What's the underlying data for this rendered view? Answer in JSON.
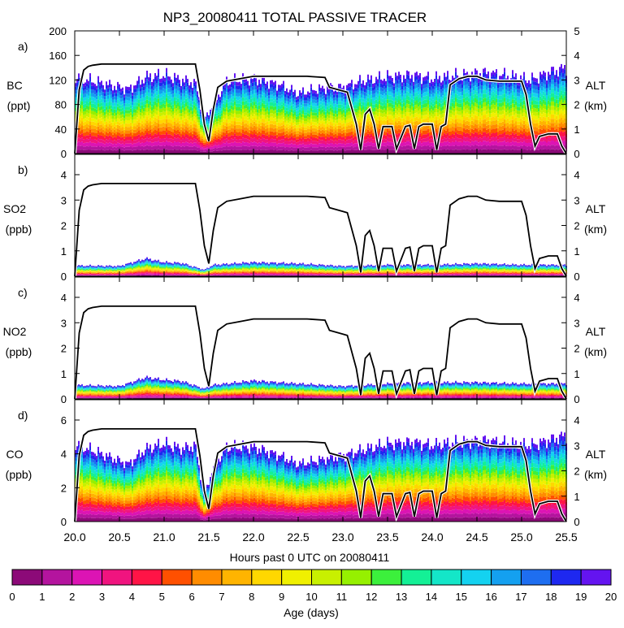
{
  "chart_data": {
    "type": "area",
    "title": "NP3_20080411 TOTAL PASSIVE TRACER",
    "xlabel": "Hours past 0 UTC on 20080411",
    "xlim": [
      20.0,
      25.5
    ],
    "xticks": [
      "20.0",
      "20.5",
      "21.0",
      "21.5",
      "22.0",
      "22.5",
      "23.0",
      "23.5",
      "24.0",
      "24.5",
      "25.0",
      "25.5"
    ],
    "right_axis": {
      "label": "ALT",
      "unit": "(km)"
    },
    "colorbar": {
      "label": "Age (days)",
      "ticks": [
        "0",
        "1",
        "2",
        "3",
        "4",
        "5",
        "6",
        "7",
        "8",
        "9",
        "10",
        "11",
        "12",
        "13",
        "14",
        "15",
        "16",
        "17",
        "18",
        "19",
        "20"
      ],
      "colors": [
        "#8c0a78",
        "#b4149e",
        "#dc14b4",
        "#f0147f",
        "#ff1446",
        "#ff5000",
        "#ff8c00",
        "#ffb400",
        "#ffd700",
        "#f0f000",
        "#c8f000",
        "#96f000",
        "#3cf03c",
        "#14f096",
        "#14e6c8",
        "#14d2f0",
        "#14a0f0",
        "#1e6ef0",
        "#1e28f0",
        "#6414f0"
      ]
    },
    "altitude_km": {
      "x": [
        20.0,
        20.05,
        20.1,
        20.15,
        20.2,
        20.3,
        21.0,
        21.35,
        21.4,
        21.45,
        21.5,
        21.55,
        21.6,
        21.7,
        21.85,
        22.0,
        22.6,
        22.8,
        22.85,
        23.0,
        23.05,
        23.15,
        23.2,
        23.25,
        23.3,
        23.35,
        23.4,
        23.45,
        23.55,
        23.6,
        23.7,
        23.75,
        23.8,
        23.85,
        23.9,
        23.95,
        24.0,
        24.05,
        24.1,
        24.15,
        24.2,
        24.3,
        24.4,
        24.5,
        24.6,
        24.75,
        24.8,
        25.0,
        25.05,
        25.1,
        25.15,
        25.2,
        25.3,
        25.35,
        25.4,
        25.45,
        25.5
      ],
      "y": [
        0.0,
        2.6,
        3.4,
        3.55,
        3.6,
        3.65,
        3.65,
        3.65,
        2.6,
        1.2,
        0.5,
        1.8,
        2.7,
        2.95,
        3.05,
        3.15,
        3.15,
        3.1,
        2.7,
        2.55,
        2.5,
        1.2,
        0.15,
        1.6,
        1.8,
        1.2,
        0.2,
        1.1,
        1.1,
        0.2,
        1.1,
        1.15,
        0.2,
        1.1,
        1.2,
        1.2,
        1.2,
        0.15,
        1.1,
        1.2,
        2.8,
        3.05,
        3.15,
        3.15,
        3.0,
        2.95,
        2.95,
        2.95,
        2.4,
        1.2,
        0.3,
        0.7,
        0.8,
        0.8,
        0.8,
        0.3,
        0.0
      ]
    },
    "panels": [
      {
        "letter": "a)",
        "species": "BC",
        "unit": "(ppt)",
        "ylim": [
          0,
          200
        ],
        "yticks": [
          0,
          40,
          80,
          120,
          160,
          200
        ],
        "alt_ylim": [
          0,
          5
        ],
        "alt_yticks": [
          0,
          1,
          2,
          3,
          4,
          5
        ],
        "total_x": [
          20.0,
          20.3,
          20.6,
          20.8,
          21.0,
          21.2,
          21.35,
          21.45,
          21.55,
          21.7,
          22.0,
          22.3,
          22.5,
          22.7,
          22.9,
          23.0,
          23.2,
          23.5,
          23.8,
          24.0,
          24.3,
          24.6,
          24.9,
          25.1,
          25.3,
          25.5
        ],
        "total": [
          125,
          115,
          105,
          125,
          128,
          120,
          115,
          55,
          80,
          118,
          122,
          112,
          98,
          105,
          108,
          108,
          118,
          125,
          128,
          122,
          128,
          132,
          126,
          120,
          132,
          140
        ]
      },
      {
        "letter": "b)",
        "species": "SO2",
        "unit": "(ppb)",
        "ylim": [
          0,
          4.8
        ],
        "yticks": [
          0,
          1,
          2,
          3,
          4
        ],
        "alt_ylim": [
          0,
          4.8
        ],
        "alt_yticks": [
          0,
          1,
          2,
          3,
          4
        ],
        "total_x": [
          20.0,
          20.5,
          20.8,
          21.0,
          21.2,
          21.45,
          21.55,
          22.0,
          22.5,
          23.0,
          23.5,
          24.0,
          24.5,
          25.0,
          25.5
        ],
        "total": [
          0.42,
          0.4,
          0.7,
          0.55,
          0.52,
          0.25,
          0.45,
          0.55,
          0.5,
          0.4,
          0.45,
          0.45,
          0.5,
          0.45,
          0.45
        ]
      },
      {
        "letter": "c)",
        "species": "NO2",
        "unit": "(ppb)",
        "ylim": [
          0,
          4.8
        ],
        "yticks": [
          0,
          1,
          2,
          3,
          4
        ],
        "alt_ylim": [
          0,
          4.8
        ],
        "alt_yticks": [
          0,
          1,
          2,
          3,
          4
        ],
        "total_x": [
          20.0,
          20.5,
          20.8,
          21.0,
          21.2,
          21.45,
          21.55,
          22.0,
          22.5,
          23.0,
          23.5,
          24.0,
          24.5,
          25.0,
          25.5
        ],
        "total": [
          0.55,
          0.5,
          0.85,
          0.75,
          0.7,
          0.4,
          0.55,
          0.72,
          0.6,
          0.5,
          0.6,
          0.65,
          0.65,
          0.6,
          0.6
        ]
      },
      {
        "letter": "d)",
        "species": "CO",
        "unit": "(ppb)",
        "ylim": [
          0,
          7.2
        ],
        "yticks": [
          0,
          2,
          4,
          6
        ],
        "alt_ylim": [
          0,
          4.8
        ],
        "alt_yticks": [
          0,
          1,
          2,
          3,
          4
        ],
        "total_x": [
          20.0,
          20.3,
          20.6,
          20.8,
          21.0,
          21.2,
          21.35,
          21.45,
          21.55,
          21.7,
          22.0,
          22.3,
          22.5,
          22.7,
          22.9,
          23.0,
          23.2,
          23.5,
          23.8,
          24.0,
          24.3,
          24.6,
          24.9,
          25.1,
          25.3,
          25.5
        ],
        "total": [
          4.6,
          4.0,
          3.4,
          4.3,
          4.6,
          4.3,
          4.5,
          1.5,
          3.2,
          4.4,
          4.4,
          3.9,
          3.4,
          3.6,
          3.8,
          3.9,
          4.2,
          4.6,
          4.7,
          4.5,
          4.7,
          4.8,
          4.6,
          4.5,
          4.8,
          5.1
        ]
      }
    ]
  }
}
